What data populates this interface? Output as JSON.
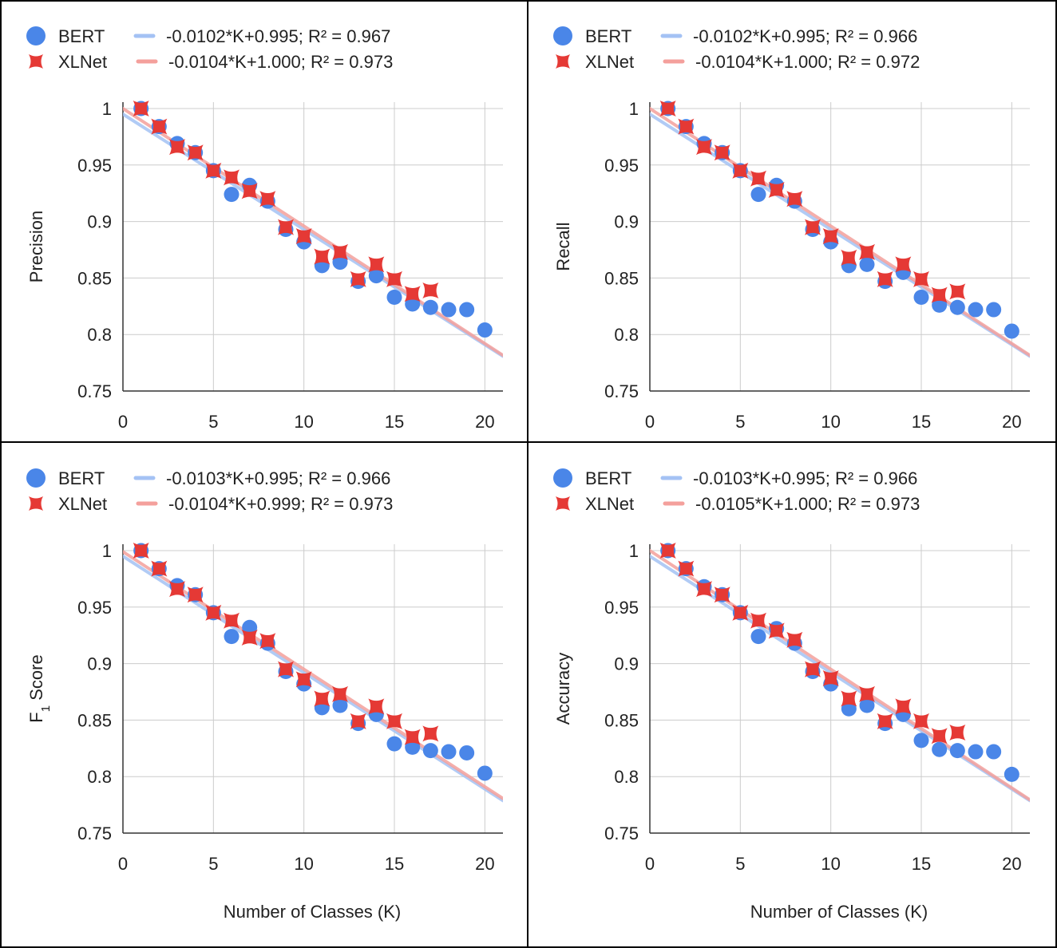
{
  "colors": {
    "bert": "#4a86e8",
    "xlnet": "#e53935",
    "bert_trend": "#a4c2f4",
    "xlnet_trend": "#f4a09c",
    "grid": "#cccccc",
    "axis": "#333333",
    "border": "#000000"
  },
  "legend_labels": {
    "bert": "BERT",
    "xlnet": "XLNet"
  },
  "x_axis_label": "Number of Classes (K)",
  "chart_data": [
    {
      "type": "scatter",
      "ylabel": "Precision",
      "xlim": [
        0,
        21
      ],
      "ylim": [
        0.75,
        1.0
      ],
      "xticks": [
        0,
        5,
        10,
        15,
        20
      ],
      "yticks": [
        0.75,
        0.8,
        0.85,
        0.9,
        0.95,
        1
      ],
      "ytick_labels": [
        "0.75",
        "0.8",
        "0.85",
        "0.9",
        "0.95",
        "1"
      ],
      "grid": true,
      "legend_position": "top",
      "series": [
        {
          "name": "BERT",
          "marker": "circle",
          "x": [
            1,
            2,
            3,
            4,
            5,
            6,
            7,
            8,
            9,
            10,
            11,
            12,
            13,
            14,
            15,
            16,
            17,
            18,
            19,
            20
          ],
          "y": [
            1.0,
            0.984,
            0.969,
            0.961,
            0.945,
            0.924,
            0.932,
            0.918,
            0.893,
            0.882,
            0.861,
            0.864,
            0.847,
            0.852,
            0.833,
            0.827,
            0.824,
            0.822,
            0.822,
            0.804
          ],
          "trendline": {
            "slope": -0.0102,
            "intercept": 0.995,
            "label": "-0.0102*K+0.995; R² = 0.967"
          }
        },
        {
          "name": "XLNet",
          "marker": "x",
          "x": [
            1,
            2,
            3,
            4,
            5,
            6,
            7,
            8,
            9,
            10,
            11,
            12,
            13,
            14,
            15,
            16,
            17
          ],
          "y": [
            1.0,
            0.984,
            0.966,
            0.961,
            0.945,
            0.939,
            0.927,
            0.92,
            0.895,
            0.887,
            0.869,
            0.873,
            0.849,
            0.862,
            0.849,
            0.836,
            0.839
          ],
          "trendline": {
            "slope": -0.0104,
            "intercept": 1.0,
            "label": "-0.0104*K+1.000; R² = 0.973"
          }
        }
      ]
    },
    {
      "type": "scatter",
      "ylabel": "Recall",
      "xlim": [
        0,
        21
      ],
      "ylim": [
        0.75,
        1.0
      ],
      "xticks": [
        0,
        5,
        10,
        15,
        20
      ],
      "yticks": [
        0.75,
        0.8,
        0.85,
        0.9,
        0.95,
        1
      ],
      "ytick_labels": [
        "0.75",
        "0.8",
        "0.85",
        "0.9",
        "0.95",
        "1"
      ],
      "grid": true,
      "legend_position": "top",
      "series": [
        {
          "name": "BERT",
          "marker": "circle",
          "x": [
            1,
            2,
            3,
            4,
            5,
            6,
            7,
            8,
            9,
            10,
            11,
            12,
            13,
            14,
            15,
            16,
            17,
            18,
            19,
            20
          ],
          "y": [
            1.0,
            0.984,
            0.969,
            0.961,
            0.945,
            0.924,
            0.932,
            0.918,
            0.893,
            0.882,
            0.861,
            0.862,
            0.847,
            0.855,
            0.833,
            0.826,
            0.824,
            0.822,
            0.822,
            0.803
          ],
          "trendline": {
            "slope": -0.0102,
            "intercept": 0.995,
            "label": "-0.0102*K+0.995; R² = 0.966"
          }
        },
        {
          "name": "XLNet",
          "marker": "x",
          "x": [
            1,
            2,
            3,
            4,
            5,
            6,
            7,
            8,
            9,
            10,
            11,
            12,
            13,
            14,
            15,
            16,
            17
          ],
          "y": [
            1.0,
            0.984,
            0.966,
            0.961,
            0.945,
            0.938,
            0.928,
            0.92,
            0.895,
            0.887,
            0.868,
            0.873,
            0.849,
            0.862,
            0.849,
            0.835,
            0.838
          ],
          "trendline": {
            "slope": -0.0104,
            "intercept": 1.0,
            "label": "-0.0104*K+1.000; R² = 0.972"
          }
        }
      ]
    },
    {
      "type": "scatter",
      "ylabel": "F1 Score",
      "xlim": [
        0,
        21
      ],
      "ylim": [
        0.75,
        1.0
      ],
      "xticks": [
        0,
        5,
        10,
        15,
        20
      ],
      "yticks": [
        0.75,
        0.8,
        0.85,
        0.9,
        0.95,
        1
      ],
      "ytick_labels": [
        "0.75",
        "0.8",
        "0.85",
        "0.9",
        "0.95",
        "1"
      ],
      "grid": true,
      "legend_position": "top",
      "series": [
        {
          "name": "BERT",
          "marker": "circle",
          "x": [
            1,
            2,
            3,
            4,
            5,
            6,
            7,
            8,
            9,
            10,
            11,
            12,
            13,
            14,
            15,
            16,
            17,
            18,
            19,
            20
          ],
          "y": [
            1.0,
            0.984,
            0.969,
            0.961,
            0.945,
            0.924,
            0.932,
            0.918,
            0.893,
            0.882,
            0.861,
            0.863,
            0.847,
            0.855,
            0.829,
            0.826,
            0.823,
            0.822,
            0.821,
            0.803
          ],
          "trendline": {
            "slope": -0.0103,
            "intercept": 0.995,
            "label": "-0.0103*K+0.995; R² = 0.966"
          }
        },
        {
          "name": "XLNet",
          "marker": "x",
          "x": [
            1,
            2,
            3,
            4,
            5,
            6,
            7,
            8,
            9,
            10,
            11,
            12,
            13,
            14,
            15,
            16,
            17
          ],
          "y": [
            1.0,
            0.984,
            0.966,
            0.961,
            0.945,
            0.938,
            0.923,
            0.92,
            0.895,
            0.886,
            0.869,
            0.873,
            0.849,
            0.862,
            0.849,
            0.835,
            0.838
          ],
          "trendline": {
            "slope": -0.0104,
            "intercept": 0.999,
            "label": "-0.0104*K+0.999; R² = 0.973"
          }
        }
      ]
    },
    {
      "type": "scatter",
      "ylabel": "Accuracy",
      "xlim": [
        0,
        21
      ],
      "ylim": [
        0.75,
        1.0
      ],
      "xticks": [
        0,
        5,
        10,
        15,
        20
      ],
      "yticks": [
        0.75,
        0.8,
        0.85,
        0.9,
        0.95,
        1
      ],
      "ytick_labels": [
        "0.75",
        "0.8",
        "0.85",
        "0.9",
        "0.95",
        "1"
      ],
      "grid": true,
      "legend_position": "top",
      "series": [
        {
          "name": "BERT",
          "marker": "circle",
          "x": [
            1,
            2,
            3,
            4,
            5,
            6,
            7,
            8,
            9,
            10,
            11,
            12,
            13,
            14,
            15,
            16,
            17,
            18,
            19,
            20
          ],
          "y": [
            1.0,
            0.984,
            0.968,
            0.961,
            0.945,
            0.924,
            0.931,
            0.918,
            0.893,
            0.882,
            0.86,
            0.863,
            0.847,
            0.855,
            0.832,
            0.824,
            0.823,
            0.822,
            0.822,
            0.802
          ],
          "trendline": {
            "slope": -0.0103,
            "intercept": 0.995,
            "label": "-0.0103*K+0.995; R² = 0.966"
          }
        },
        {
          "name": "XLNet",
          "marker": "x",
          "x": [
            1,
            2,
            3,
            4,
            5,
            6,
            7,
            8,
            9,
            10,
            11,
            12,
            13,
            14,
            15,
            16,
            17
          ],
          "y": [
            1.0,
            0.984,
            0.966,
            0.961,
            0.945,
            0.938,
            0.929,
            0.921,
            0.895,
            0.887,
            0.869,
            0.873,
            0.849,
            0.862,
            0.849,
            0.836,
            0.839
          ],
          "trendline": {
            "slope": -0.0105,
            "intercept": 1.0,
            "label": "-0.0105*K+1.000; R² = 0.973"
          }
        }
      ]
    }
  ]
}
